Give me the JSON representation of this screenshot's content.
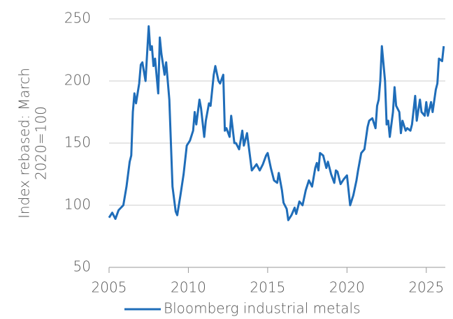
{
  "chart_data": {
    "type": "line",
    "y_label_lines": [
      "Index rebased: March",
      "2020=100"
    ],
    "x": [
      2005.0,
      2005.2,
      2005.4,
      2005.6,
      2005.9,
      2006.1,
      2006.3,
      2006.4,
      2006.5,
      2006.6,
      2006.7,
      2006.9,
      2007.0,
      2007.1,
      2007.3,
      2007.5,
      2007.6,
      2007.7,
      2007.8,
      2007.9,
      2008.1,
      2008.2,
      2008.3,
      2008.5,
      2008.6,
      2008.8,
      2008.9,
      2009.0,
      2009.2,
      2009.3,
      2009.5,
      2009.7,
      2009.9,
      2010.1,
      2010.3,
      2010.4,
      2010.5,
      2010.7,
      2010.8,
      2011.0,
      2011.1,
      2011.3,
      2011.4,
      2011.6,
      2011.7,
      2011.9,
      2012.0,
      2012.2,
      2012.3,
      2012.4,
      2012.6,
      2012.7,
      2012.9,
      2013.0,
      2013.2,
      2013.4,
      2013.5,
      2013.7,
      2013.9,
      2014.0,
      2014.3,
      2014.5,
      2014.7,
      2014.9,
      2015.0,
      2015.2,
      2015.4,
      2015.6,
      2015.7,
      2015.9,
      2016.0,
      2016.2,
      2016.3,
      2016.5,
      2016.7,
      2016.8,
      2017.0,
      2017.2,
      2017.4,
      2017.6,
      2017.8,
      2018.0,
      2018.1,
      2018.2,
      2018.3,
      2018.5,
      2018.7,
      2018.8,
      2019.0,
      2019.2,
      2019.3,
      2019.4,
      2019.6,
      2019.8,
      2020.0,
      2020.1,
      2020.2,
      2020.4,
      2020.6,
      2020.7,
      2020.9,
      2021.1,
      2021.3,
      2021.4,
      2021.6,
      2021.8,
      2021.9,
      2022.0,
      2022.1,
      2022.2,
      2022.4,
      2022.5,
      2022.6,
      2022.7,
      2022.9,
      2023.0,
      2023.1,
      2023.3,
      2023.4,
      2023.5,
      2023.7,
      2023.8,
      2024.0,
      2024.1,
      2024.3,
      2024.4,
      2024.6,
      2024.7,
      2024.9,
      2025.0,
      2025.1,
      2025.3,
      2025.4,
      2025.6,
      2025.7,
      2025.8,
      2026.0,
      2026.1
    ],
    "series": [
      {
        "name": "Bloomberg industrial metals",
        "color": "#1f6db9",
        "values": [
          90,
          94,
          89,
          96,
          100,
          115,
          135,
          140,
          175,
          190,
          182,
          198,
          213,
          215,
          200,
          244,
          225,
          228,
          212,
          218,
          190,
          235,
          222,
          205,
          215,
          185,
          150,
          115,
          95,
          92,
          108,
          125,
          148,
          152,
          160,
          175,
          165,
          185,
          178,
          155,
          168,
          182,
          180,
          205,
          212,
          200,
          198,
          205,
          160,
          162,
          155,
          172,
          150,
          150,
          145,
          160,
          148,
          158,
          138,
          128,
          133,
          128,
          133,
          140,
          142,
          130,
          120,
          118,
          126,
          112,
          102,
          97,
          88,
          92,
          98,
          93,
          103,
          100,
          112,
          120,
          115,
          130,
          134,
          128,
          142,
          140,
          130,
          135,
          125,
          118,
          128,
          127,
          117,
          121,
          124,
          112,
          100,
          108,
          120,
          128,
          142,
          145,
          163,
          168,
          170,
          162,
          180,
          185,
          200,
          228,
          200,
          165,
          168,
          155,
          175,
          195,
          180,
          175,
          158,
          168,
          160,
          162,
          160,
          165,
          188,
          168,
          185,
          175,
          172,
          183,
          172,
          183,
          175,
          193,
          198,
          218,
          216,
          228
        ]
      }
    ],
    "xlim": [
      2005,
      2026.2
    ],
    "xticks": [
      2005,
      2010,
      2015,
      2020,
      2025
    ],
    "ylim": [
      50,
      250
    ],
    "yticks": [
      50,
      100,
      150,
      200,
      250
    ],
    "grid": true
  }
}
